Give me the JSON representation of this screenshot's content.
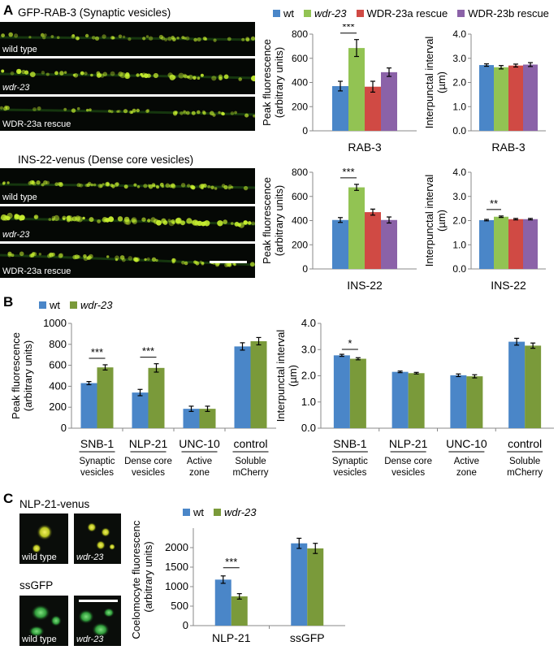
{
  "panels": {
    "A": {
      "letter": "A",
      "rab3_title": "GFP-RAB-3 (Synaptic vesicles)",
      "ins22_title": "INS-22-venus (Dense core vesicles)",
      "strip_labels": [
        "wild type",
        "wdr-23",
        "WDR-23a rescue"
      ],
      "legend": [
        "wt",
        "wdr-23",
        "WDR-23a rescue",
        "WDR-23b rescue"
      ]
    },
    "B": {
      "letter": "B",
      "legend": [
        "wt",
        "wdr-23"
      ],
      "group_labels": [
        "SNB-1",
        "NLP-21",
        "UNC-10",
        "control"
      ],
      "group_sublabels": [
        "Synaptic vesicles",
        "Dense core vesicles",
        "Active zone",
        "Soluble mCherry"
      ]
    },
    "C": {
      "letter": "C",
      "nlp21_title": "NLP-21-venus",
      "ssgfp_title": "ssGFP",
      "image_labels": [
        "wild type",
        "wdr-23",
        "wild type",
        "wdr-23"
      ],
      "legend": [
        "wt",
        "wdr-23"
      ]
    }
  },
  "colors": {
    "wt": "#4a86c8",
    "wdr23_A": "#92c353",
    "wdr23": "#7a9a3a",
    "rescue_a": "#d04a44",
    "rescue_b": "#8b62a8",
    "strip_bg": "#050805",
    "puncta": "#c8f030"
  },
  "chart_data": [
    {
      "id": "A-rab3-peak",
      "type": "bar",
      "categories": [
        "RAB-3"
      ],
      "xlabel": "RAB-3",
      "ylabel": "Peak fluorescence (arbitrary units)",
      "ylim": [
        0,
        800
      ],
      "yticks": [
        "0",
        "200",
        "400",
        "600",
        "800"
      ],
      "series": [
        {
          "name": "wt",
          "values": [
            370
          ],
          "errors": [
            40
          ]
        },
        {
          "name": "wdr-23",
          "values": [
            685
          ],
          "errors": [
            70
          ]
        },
        {
          "name": "WDR-23a rescue",
          "values": [
            365
          ],
          "errors": [
            45
          ]
        },
        {
          "name": "WDR-23b rescue",
          "values": [
            485
          ],
          "errors": [
            35
          ]
        }
      ],
      "annotations": [
        "***"
      ]
    },
    {
      "id": "A-rab3-interval",
      "type": "bar",
      "categories": [
        "RAB-3"
      ],
      "xlabel": "RAB-3",
      "ylabel": "Interpunctal interval (µm)",
      "ylim": [
        0,
        4
      ],
      "yticks": [
        "0.0",
        "1.0",
        "2.0",
        "3.0",
        "4.0"
      ],
      "series": [
        {
          "name": "wt",
          "values": [
            2.72
          ],
          "errors": [
            0.05
          ]
        },
        {
          "name": "wdr-23",
          "values": [
            2.63
          ],
          "errors": [
            0.07
          ]
        },
        {
          "name": "WDR-23a rescue",
          "values": [
            2.7
          ],
          "errors": [
            0.06
          ]
        },
        {
          "name": "WDR-23b rescue",
          "values": [
            2.74
          ],
          "errors": [
            0.08
          ]
        }
      ],
      "annotations": []
    },
    {
      "id": "A-ins22-peak",
      "type": "bar",
      "categories": [
        "INS-22"
      ],
      "xlabel": "INS-22",
      "ylabel": "Peak fluorescence (arbitrary units)",
      "ylim": [
        0,
        800
      ],
      "yticks": [
        "0",
        "200",
        "400",
        "600",
        "800"
      ],
      "series": [
        {
          "name": "wt",
          "values": [
            405
          ],
          "errors": [
            20
          ]
        },
        {
          "name": "wdr-23",
          "values": [
            675
          ],
          "errors": [
            25
          ]
        },
        {
          "name": "WDR-23a rescue",
          "values": [
            470
          ],
          "errors": [
            25
          ]
        },
        {
          "name": "WDR-23b rescue",
          "values": [
            405
          ],
          "errors": [
            25
          ]
        }
      ],
      "annotations": [
        "***"
      ]
    },
    {
      "id": "A-ins22-interval",
      "type": "bar",
      "categories": [
        "INS-22"
      ],
      "xlabel": "INS-22",
      "ylabel": "Interpunctal interval (µm)",
      "ylim": [
        0,
        4
      ],
      "yticks": [
        "0.0",
        "1.0",
        "2.0",
        "3.0",
        "4.0"
      ],
      "series": [
        {
          "name": "wt",
          "values": [
            2.02
          ],
          "errors": [
            0.03
          ]
        },
        {
          "name": "wdr-23",
          "values": [
            2.16
          ],
          "errors": [
            0.03
          ]
        },
        {
          "name": "WDR-23a rescue",
          "values": [
            2.06
          ],
          "errors": [
            0.03
          ]
        },
        {
          "name": "WDR-23b rescue",
          "values": [
            2.06
          ],
          "errors": [
            0.03
          ]
        }
      ],
      "annotations": [
        "**"
      ]
    },
    {
      "id": "B-peak",
      "type": "bar",
      "categories": [
        "SNB-1",
        "NLP-21",
        "UNC-10",
        "control"
      ],
      "ylabel": "Peak fluorescence (arbitrary units)",
      "ylim": [
        0,
        1000
      ],
      "yticks": [
        "0",
        "200",
        "400",
        "600",
        "800",
        "1000"
      ],
      "series": [
        {
          "name": "wt",
          "values": [
            430,
            340,
            185,
            780
          ],
          "errors": [
            15,
            30,
            25,
            35
          ]
        },
        {
          "name": "wdr-23",
          "values": [
            580,
            575,
            185,
            830
          ],
          "errors": [
            25,
            40,
            25,
            35
          ]
        }
      ],
      "annotations": [
        "***",
        "***"
      ]
    },
    {
      "id": "B-interval",
      "type": "bar",
      "categories": [
        "SNB-1",
        "NLP-21",
        "UNC-10",
        "control"
      ],
      "ylabel": "Interpunctal interval (µm)",
      "ylim": [
        0,
        4
      ],
      "yticks": [
        "0.0",
        "1.0",
        "2.0",
        "3.0",
        "4.0"
      ],
      "series": [
        {
          "name": "wt",
          "values": [
            2.78,
            2.15,
            2.02,
            3.3
          ],
          "errors": [
            0.04,
            0.03,
            0.05,
            0.13
          ]
        },
        {
          "name": "wdr-23",
          "values": [
            2.65,
            2.1,
            1.98,
            3.15
          ],
          "errors": [
            0.04,
            0.03,
            0.06,
            0.1
          ]
        }
      ],
      "annotations": [
        "*"
      ]
    },
    {
      "id": "C-coelomocyte",
      "type": "bar",
      "categories": [
        "NLP-21",
        "ssGFP"
      ],
      "ylabel": "Coelomocyte fluorescence (arbitrary units)",
      "ylim": [
        0,
        2500
      ],
      "yticks": [
        "0",
        "500",
        "1000",
        "1500",
        "2000"
      ],
      "series": [
        {
          "name": "wt",
          "values": [
            1180,
            2110
          ],
          "errors": [
            95,
            130
          ]
        },
        {
          "name": "wdr-23",
          "values": [
            750,
            1980
          ],
          "errors": [
            70,
            130
          ]
        }
      ],
      "annotations": [
        "***"
      ]
    }
  ]
}
